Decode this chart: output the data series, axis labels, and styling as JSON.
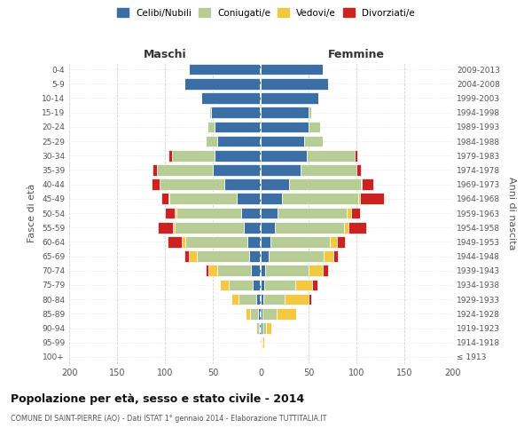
{
  "age_groups": [
    "100+",
    "95-99",
    "90-94",
    "85-89",
    "80-84",
    "75-79",
    "70-74",
    "65-69",
    "60-64",
    "55-59",
    "50-54",
    "45-49",
    "40-44",
    "35-39",
    "30-34",
    "25-29",
    "20-24",
    "15-19",
    "10-14",
    "5-9",
    "0-4"
  ],
  "birth_years": [
    "≤ 1913",
    "1914-1918",
    "1919-1923",
    "1924-1928",
    "1929-1933",
    "1934-1938",
    "1939-1943",
    "1944-1948",
    "1949-1953",
    "1954-1958",
    "1959-1963",
    "1964-1968",
    "1969-1973",
    "1974-1978",
    "1979-1983",
    "1984-1988",
    "1989-1993",
    "1994-1998",
    "1999-2003",
    "2004-2008",
    "2009-2013"
  ],
  "male_celibi": [
    1,
    1,
    2,
    3,
    5,
    8,
    10,
    12,
    14,
    18,
    20,
    25,
    38,
    50,
    48,
    45,
    48,
    52,
    62,
    80,
    75
  ],
  "male_coniugati": [
    0,
    1,
    3,
    8,
    18,
    25,
    35,
    55,
    65,
    72,
    68,
    70,
    68,
    58,
    45,
    12,
    8,
    2,
    0,
    0,
    0
  ],
  "male_vedovi": [
    0,
    0,
    1,
    5,
    8,
    10,
    10,
    8,
    3,
    2,
    2,
    1,
    0,
    0,
    0,
    0,
    0,
    0,
    0,
    0,
    0
  ],
  "male_divorziati": [
    0,
    0,
    0,
    0,
    0,
    0,
    2,
    5,
    15,
    15,
    10,
    8,
    8,
    5,
    3,
    0,
    0,
    0,
    0,
    0,
    0
  ],
  "female_celibi": [
    0,
    1,
    2,
    2,
    3,
    4,
    5,
    8,
    10,
    15,
    18,
    22,
    30,
    42,
    48,
    45,
    50,
    50,
    60,
    70,
    65
  ],
  "female_coniugati": [
    0,
    1,
    4,
    15,
    22,
    32,
    45,
    58,
    62,
    72,
    72,
    80,
    75,
    58,
    50,
    20,
    12,
    3,
    0,
    0,
    0
  ],
  "female_vedovi": [
    1,
    2,
    5,
    20,
    25,
    18,
    15,
    10,
    8,
    5,
    4,
    2,
    1,
    0,
    0,
    0,
    0,
    0,
    0,
    0,
    0
  ],
  "female_divorziati": [
    0,
    0,
    0,
    0,
    3,
    5,
    5,
    5,
    8,
    18,
    10,
    25,
    12,
    5,
    3,
    0,
    0,
    0,
    0,
    0,
    0
  ],
  "color_celibi": "#3a6ea5",
  "color_coniugati": "#b8cc96",
  "color_vedovi": "#f5c842",
  "color_divorziati": "#cc2222",
  "title": "Popolazione per età, sesso e stato civile - 2014",
  "subtitle": "COMUNE DI SAINT-PIERRE (AO) - Dati ISTAT 1° gennaio 2014 - Elaborazione TUTTITALIA.IT",
  "xlabel_left": "Maschi",
  "xlabel_right": "Femmine",
  "ylabel_left": "Fasce di età",
  "ylabel_right": "Anni di nascita",
  "xlim": 200,
  "bg_color": "#ffffff",
  "grid_color": "#cccccc"
}
